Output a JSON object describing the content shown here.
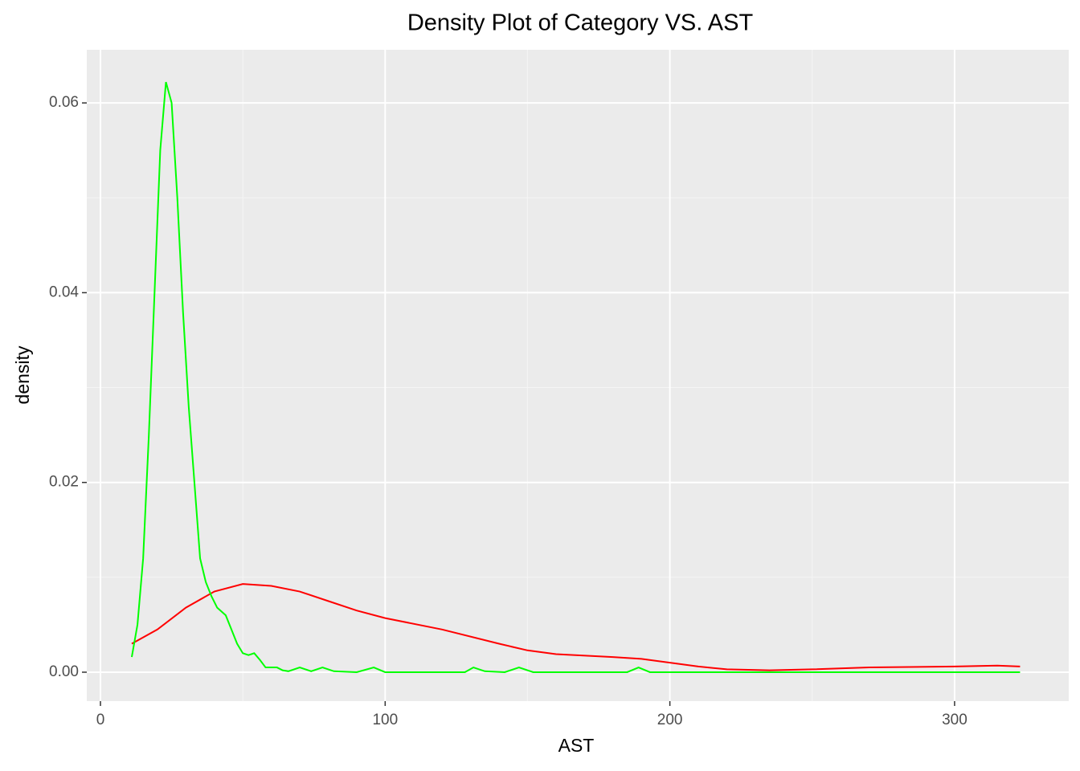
{
  "chart_data": {
    "type": "line",
    "title": "Density Plot of Category VS. AST",
    "x_label": "AST",
    "y_label": "density",
    "xlim": [
      -4.8,
      340.1
    ],
    "ylim": [
      -0.00305,
      0.0656
    ],
    "xticks": [
      0,
      100,
      200,
      300
    ],
    "yticks": [
      {
        "value": 0,
        "label": "0.00"
      },
      {
        "value": 0.02,
        "label": "0.02"
      },
      {
        "value": 0.04,
        "label": "0.04"
      },
      {
        "value": 0.06,
        "label": "0.06"
      }
    ],
    "x_minor": [
      50,
      150,
      250
    ],
    "y_minor": [
      0.01,
      0.03,
      0.05
    ],
    "grid": true,
    "series": [
      {
        "color": "#FF0000",
        "x": [
          11,
          20,
          30,
          40,
          50,
          60,
          70,
          80,
          90,
          100,
          120,
          140,
          150,
          160,
          180,
          190,
          200,
          210,
          220,
          235,
          250,
          270,
          300,
          315,
          323
        ],
        "values": [
          0.003,
          0.0045,
          0.0068,
          0.0085,
          0.0093,
          0.0091,
          0.0085,
          0.0075,
          0.0065,
          0.0057,
          0.0045,
          0.003,
          0.0023,
          0.0019,
          0.0016,
          0.0014,
          0.001,
          0.0006,
          0.0003,
          0.0002,
          0.0003,
          0.0005,
          0.0006,
          0.0007,
          0.0006
        ]
      },
      {
        "color": "#00FF00",
        "x": [
          11,
          13,
          15,
          17,
          19,
          21,
          23,
          25,
          27,
          29,
          31,
          33,
          35,
          37,
          39,
          41,
          44,
          46,
          48,
          50,
          52,
          54,
          56,
          58,
          60,
          62,
          64,
          66,
          70,
          74,
          78,
          82,
          90,
          96,
          100,
          128,
          131,
          135,
          142,
          147,
          152,
          185,
          189,
          193,
          250,
          323
        ],
        "values": [
          0.0016,
          0.005,
          0.012,
          0.025,
          0.04,
          0.055,
          0.0622,
          0.06,
          0.05,
          0.038,
          0.028,
          0.02,
          0.012,
          0.0095,
          0.008,
          0.0068,
          0.006,
          0.0045,
          0.003,
          0.002,
          0.0018,
          0.002,
          0.0013,
          0.0005,
          0.0005,
          0.0005,
          0.0002,
          0.0001,
          0.0005,
          0.0001,
          0.0005,
          0.0001,
          0,
          0.0005,
          0,
          0,
          0.0005,
          0.0001,
          0,
          0.0005,
          0,
          0,
          0.0005,
          0,
          0,
          0
        ]
      }
    ]
  }
}
